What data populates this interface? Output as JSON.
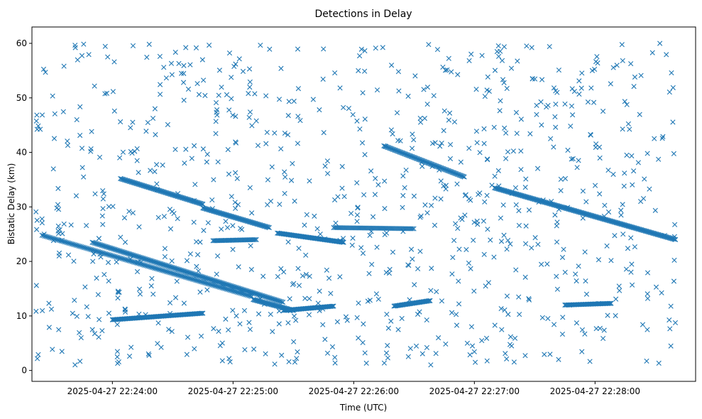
{
  "chart_data": {
    "type": "scatter",
    "title": "Detections in Delay",
    "xlabel": "Time (UTC)",
    "ylabel": "Bistatic Delay (km)",
    "x_range_seconds": [
      -40,
      290
    ],
    "xticks": [
      {
        "offset_s": 0,
        "label": "2025-04-27 22:24:00"
      },
      {
        "offset_s": 60,
        "label": "2025-04-27 22:25:00"
      },
      {
        "offset_s": 120,
        "label": "2025-04-27 22:26:00"
      },
      {
        "offset_s": 180,
        "label": "2025-04-27 22:27:00"
      },
      {
        "offset_s": 240,
        "label": "2025-04-27 22:28:00"
      }
    ],
    "ylim": [
      -2,
      63
    ],
    "yticks": [
      0,
      10,
      20,
      30,
      40,
      50,
      60
    ],
    "grid": false,
    "marker": "x",
    "color": "#1f77b4",
    "series": [
      {
        "start_s": -10,
        "end_s": 85,
        "start_km": 23.5,
        "end_km": 12.5,
        "step_s": 0.6
      },
      {
        "start_s": -35,
        "end_s": 70,
        "start_km": 24.8,
        "end_km": 13.5,
        "step_s": 0.7
      },
      {
        "start_s": 4,
        "end_s": 45,
        "start_km": 35.2,
        "end_km": 30.5,
        "step_s": 0.5
      },
      {
        "start_s": 45,
        "end_s": 78,
        "start_km": 29.8,
        "end_km": 26.2,
        "step_s": 0.5
      },
      {
        "start_s": 82,
        "end_s": 115,
        "start_km": 25.2,
        "end_km": 23.5,
        "step_s": 0.5
      },
      {
        "start_s": 135,
        "end_s": 175,
        "start_km": 41.2,
        "end_km": 35.5,
        "step_s": 0.5
      },
      {
        "start_s": 190,
        "end_s": 280,
        "start_km": 33.5,
        "end_km": 24.0,
        "step_s": 0.5
      },
      {
        "start_s": 70,
        "end_s": 90,
        "start_km": 13.0,
        "end_km": 11.0,
        "step_s": 0.5
      },
      {
        "start_s": 85,
        "end_s": 110,
        "start_km": 11.0,
        "end_km": 11.8,
        "step_s": 0.5
      },
      {
        "start_s": 140,
        "end_s": 158,
        "start_km": 11.8,
        "end_km": 12.8,
        "step_s": 0.5
      },
      {
        "start_s": 0,
        "end_s": 45,
        "start_km": 9.3,
        "end_km": 10.5,
        "step_s": 0.5
      },
      {
        "start_s": 225,
        "end_s": 248,
        "start_km": 12.0,
        "end_km": 12.3,
        "step_s": 0.5
      },
      {
        "start_s": 50,
        "end_s": 72,
        "start_km": 23.8,
        "end_km": 24.0,
        "step_s": 0.6
      },
      {
        "start_s": 110,
        "end_s": 150,
        "start_km": 26.2,
        "end_km": 26.0,
        "step_s": 0.7
      }
    ],
    "noise": {
      "count": 900,
      "x_range_s": [
        -38,
        280
      ],
      "y_range_km": [
        1,
        60
      ],
      "seed": 7
    }
  }
}
